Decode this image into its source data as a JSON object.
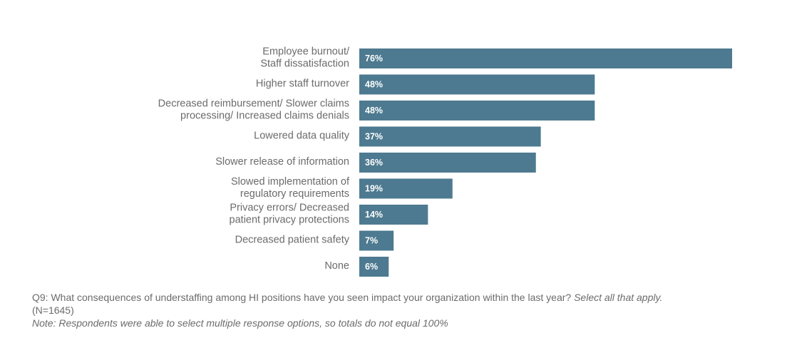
{
  "chart_data": {
    "type": "bar",
    "orientation": "horizontal",
    "categories": [
      [
        "Employee burnout/",
        "Staff dissatisfaction"
      ],
      [
        "Higher staff turnover"
      ],
      [
        "Decreased reimbursement/ Slower claims",
        "processing/ Increased claims denials"
      ],
      [
        "Lowered data quality"
      ],
      [
        "Slower release of information"
      ],
      [
        "Slowed implementation of",
        "regulatory requirements"
      ],
      [
        "Privacy errors/ Decreased",
        "patient privacy protections"
      ],
      [
        "Decreased patient safety"
      ],
      [
        "None"
      ]
    ],
    "values": [
      76,
      48,
      48,
      37,
      36,
      19,
      14,
      7,
      6
    ],
    "value_labels": [
      "76%",
      "48%",
      "48%",
      "37%",
      "36%",
      "19%",
      "14%",
      "7%",
      "6%"
    ],
    "xlim": [
      0,
      100
    ],
    "bar_color": "#4d7a90",
    "grid": false
  },
  "footer": {
    "question": "Q9: What consequences of understaffing among HI positions have you seen impact your organization within the last year?",
    "instruction": "Select all that apply.",
    "sample": "(N=1645)",
    "note": "Note: Respondents were able to select multiple response options, so totals do not equal 100%"
  }
}
